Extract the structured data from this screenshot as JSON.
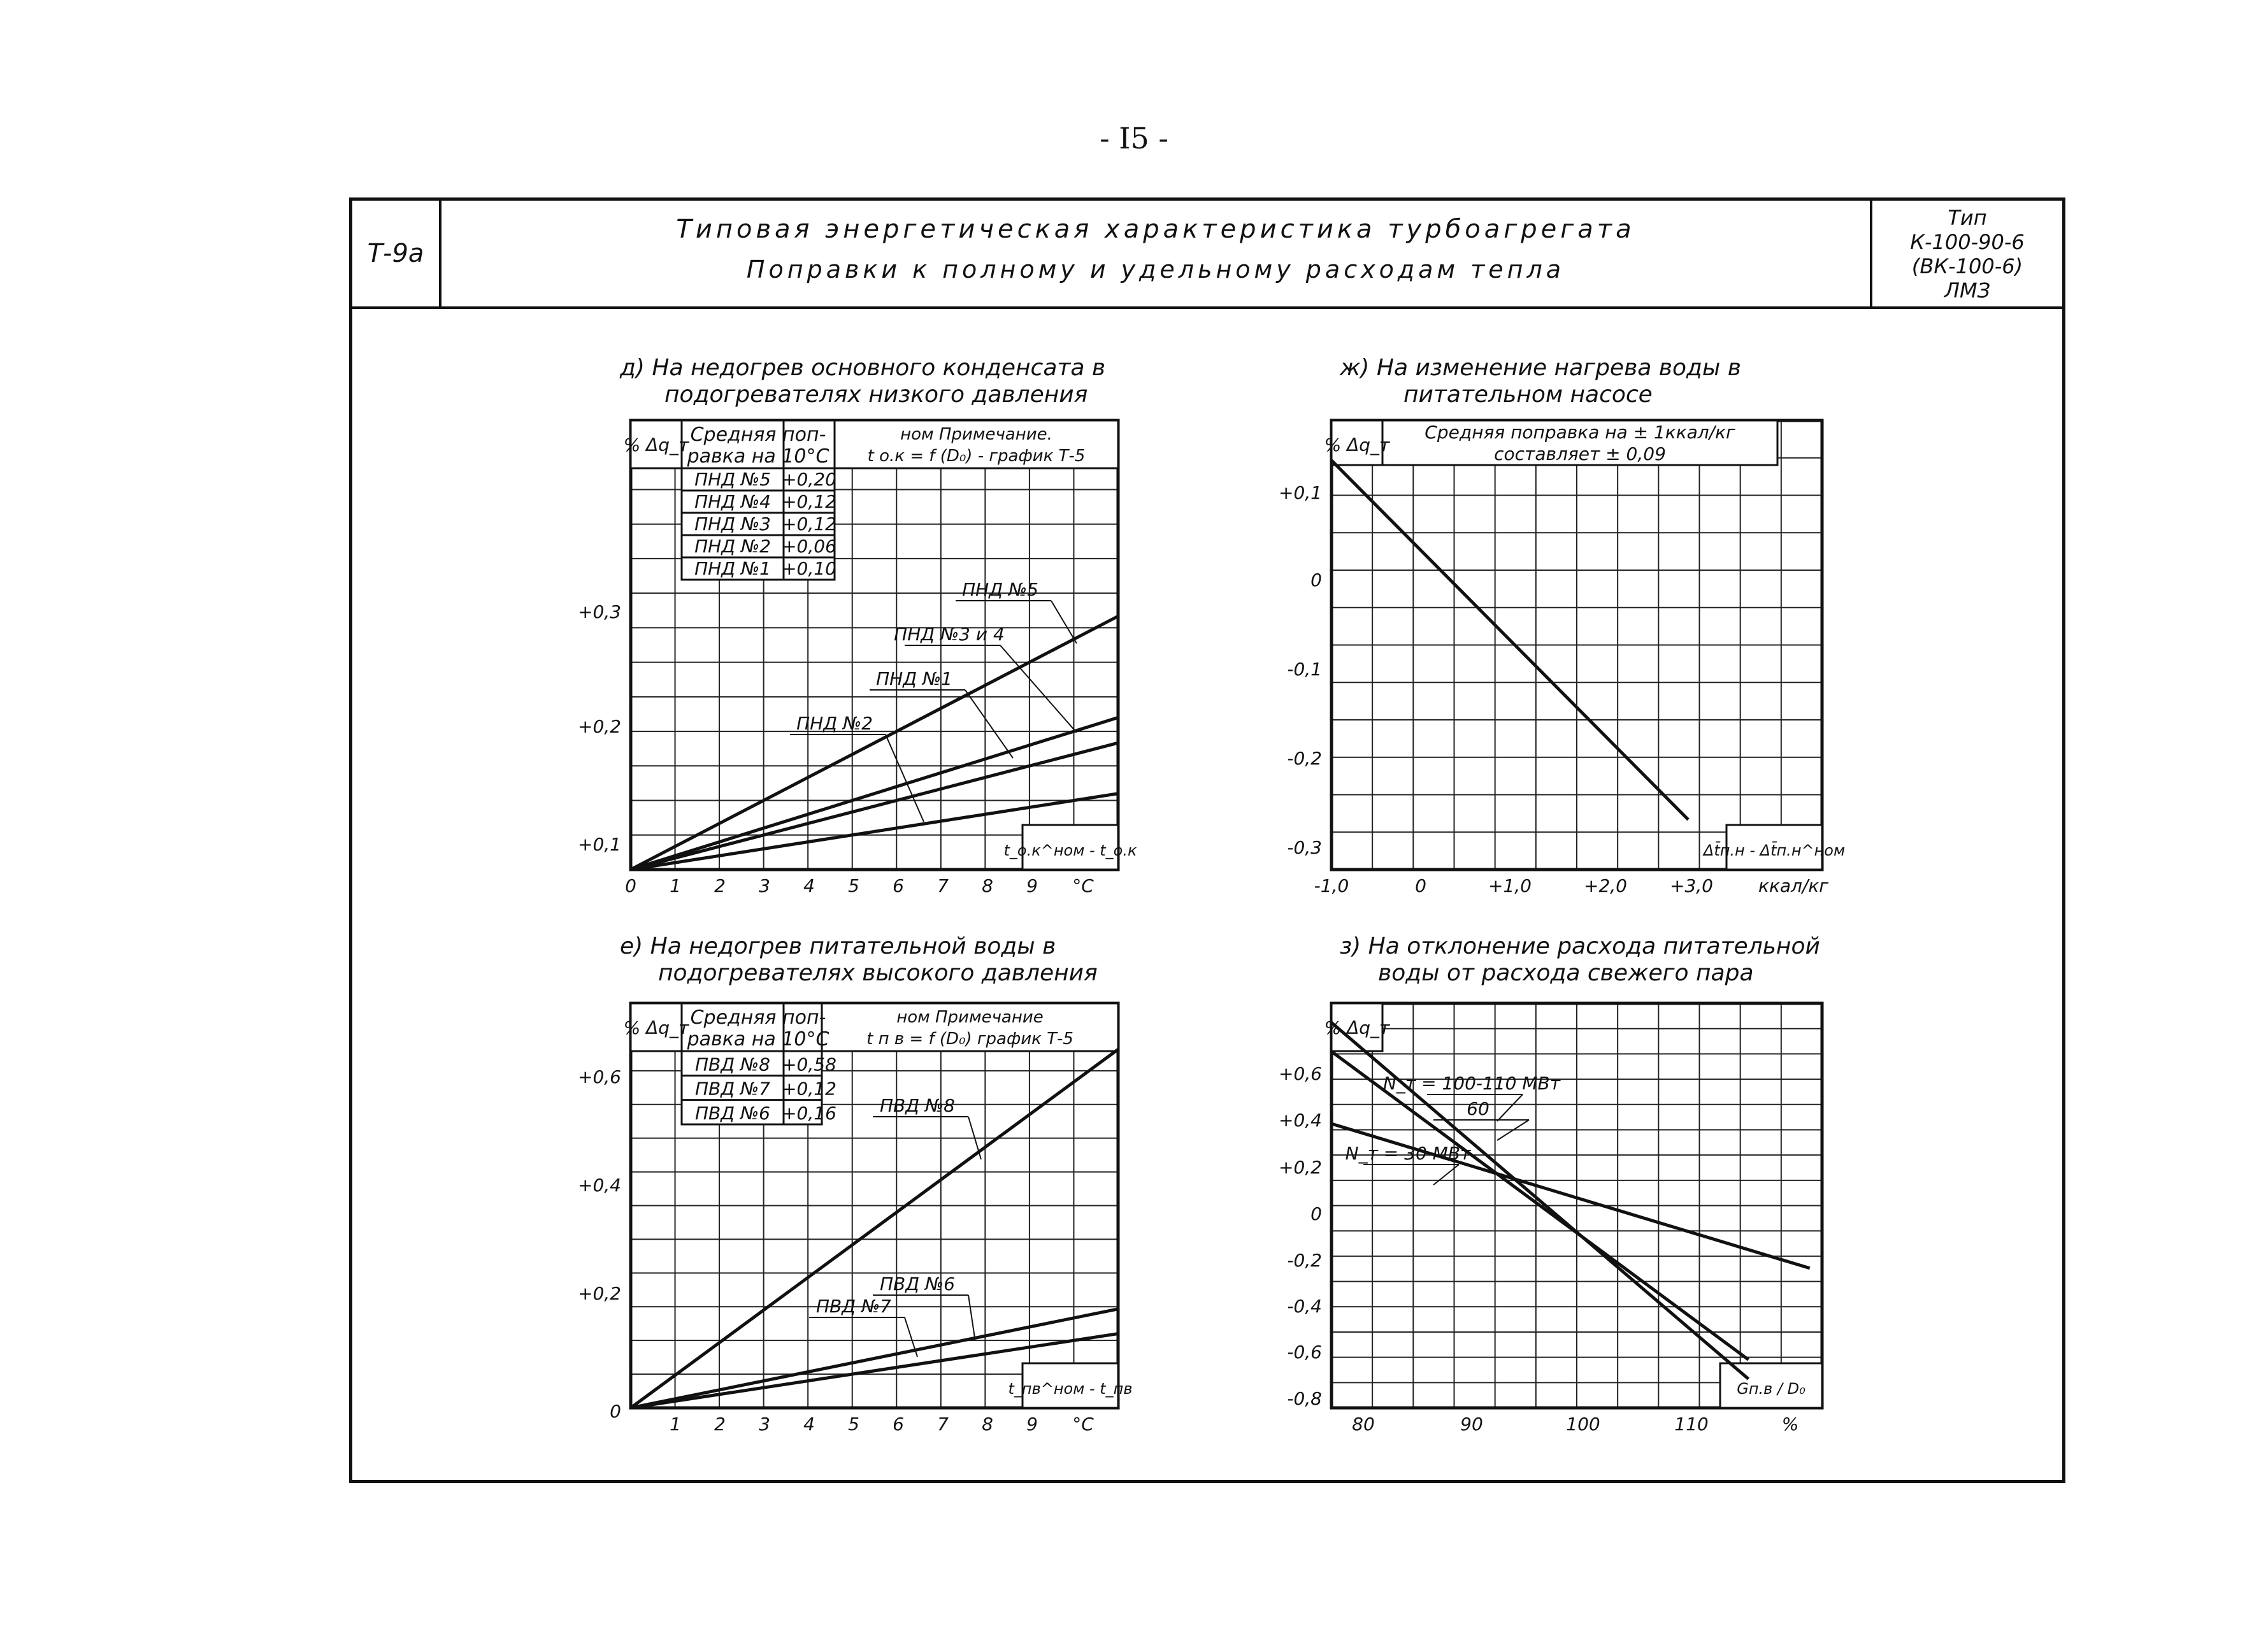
{
  "page_number": "- I5 -",
  "header": {
    "code": "Т-9а",
    "title_line1": "Типовая энергетическая характеристика турбоагрегата",
    "title_line2": "Поправки к полному и удельному расходам тепла",
    "type_lines": [
      "Тип",
      "К-100-90-6",
      "(ВК-100-6)",
      "ЛМЗ"
    ]
  },
  "chart_data": [
    {
      "id": "d",
      "type": "line",
      "title_lines": [
        "д) На недогрев основного конденсата в",
        "подогревателях низкого давления"
      ],
      "ylabel": "% Δq_т",
      "xlabel": "t_о.к^ном - t_о.к",
      "x_ticks": [
        "0",
        "1",
        "2",
        "3",
        "4",
        "5",
        "6",
        "7",
        "8",
        "9",
        "°С"
      ],
      "y_ticks": [
        "+0,3",
        "+0,2",
        "+0,1"
      ],
      "xlim": [
        0,
        11
      ],
      "ylim": [
        0,
        0.39
      ],
      "table": {
        "header": [
          "Средняя поп-",
          "равка на 10°С"
        ],
        "rows": [
          [
            "ПНД №5",
            "+0,20"
          ],
          [
            "ПНД №4",
            "+0,12"
          ],
          [
            "ПНД №3",
            "+0,12"
          ],
          [
            "ПНД №2",
            "+0,06"
          ],
          [
            "ПНД №1",
            "+0,10"
          ]
        ]
      },
      "note_lines": [
        "ном Примечание.",
        "t о.к = f (D₀) - график Т-5"
      ],
      "series": [
        {
          "name": "ПНД №5",
          "x": [
            0,
            11
          ],
          "y": [
            0,
            0.22
          ]
        },
        {
          "name": "ПНД №3 и 4",
          "x": [
            0,
            11
          ],
          "y": [
            0,
            0.132
          ]
        },
        {
          "name": "ПНД №1",
          "x": [
            0,
            11
          ],
          "y": [
            0,
            0.11
          ]
        },
        {
          "name": "ПНД №2",
          "x": [
            0,
            11
          ],
          "y": [
            0,
            0.066
          ]
        }
      ]
    },
    {
      "id": "zh",
      "type": "line",
      "title_lines": [
        "ж) На изменение нагрева воды в",
        "питательном насосе"
      ],
      "ylabel": "% Δq_т",
      "xlabel": "Δt̄п.н - Δt̄п.н^ном",
      "x_ticks": [
        "-1,0",
        "0",
        "+1,0",
        "+2,0",
        "+3,0",
        "ккал/кг"
      ],
      "y_ticks": [
        "+0,1",
        "0",
        "-0,1",
        "-0,2",
        "-0,3"
      ],
      "xlim": [
        -1.0,
        4.5
      ],
      "ylim": [
        -0.32,
        0.13
      ],
      "note_lines": [
        "Средняя поправка на ± 1ккал/кг",
        "составляет ± 0,09"
      ],
      "series": [
        {
          "name": "",
          "x": [
            -1.0,
            3.0
          ],
          "y": [
            0.09,
            -0.27
          ]
        }
      ]
    },
    {
      "id": "e",
      "type": "line",
      "title_lines": [
        "е) На недогрев питательной воды в",
        "подогревателях высокого давления"
      ],
      "ylabel": "% Δq_т",
      "xlabel": "t_пв^ном - t_пв",
      "x_ticks": [
        "1",
        "2",
        "3",
        "4",
        "5",
        "6",
        "7",
        "8",
        "9",
        "°С"
      ],
      "y_ticks": [
        "+0,6",
        "+0,4",
        "+0,2",
        "0"
      ],
      "xlim": [
        0,
        11
      ],
      "ylim": [
        0,
        0.72
      ],
      "table": {
        "header": [
          "Средняя поп-",
          "равка на 10°С"
        ],
        "rows": [
          [
            "ПВД №8",
            "+0,58"
          ],
          [
            "ПВД №7",
            "+0,12"
          ],
          [
            "ПВД №6",
            "+0,16"
          ]
        ]
      },
      "note_lines": [
        "ном Примечание",
        "t п в = f (D₀) график Т-5"
      ],
      "series": [
        {
          "name": "ПВД №8",
          "x": [
            0,
            11
          ],
          "y": [
            0,
            0.638
          ]
        },
        {
          "name": "ПВД №6",
          "x": [
            0,
            11
          ],
          "y": [
            0,
            0.176
          ]
        },
        {
          "name": "ПВД №7",
          "x": [
            0,
            11
          ],
          "y": [
            0,
            0.132
          ]
        }
      ]
    },
    {
      "id": "z",
      "type": "line",
      "title_lines": [
        "з) На отклонение расхода питательной",
        "воды от расхода свежего пара"
      ],
      "ylabel": "% Δq_т",
      "xlabel": "Gп.в / D₀",
      "x_ticks": [
        "80",
        "90",
        "100",
        "110",
        "%"
      ],
      "y_ticks": [
        "+0,6",
        "+0,4",
        "+0,2",
        "0",
        "-0,2",
        "-0,4",
        "-0,6",
        "-0,8"
      ],
      "xlim": [
        80,
        120
      ],
      "ylim": [
        -0.88,
        0.8
      ],
      "series": [
        {
          "name": "N_т = 100-110 МВт",
          "x": [
            80,
            114
          ],
          "y": [
            0.72,
            -0.76
          ]
        },
        {
          "name": "60",
          "x": [
            80,
            114
          ],
          "y": [
            0.6,
            -0.68
          ]
        },
        {
          "name": "N_т = 30 МВт",
          "x": [
            80,
            119
          ],
          "y": [
            0.3,
            -0.3
          ]
        }
      ]
    }
  ]
}
